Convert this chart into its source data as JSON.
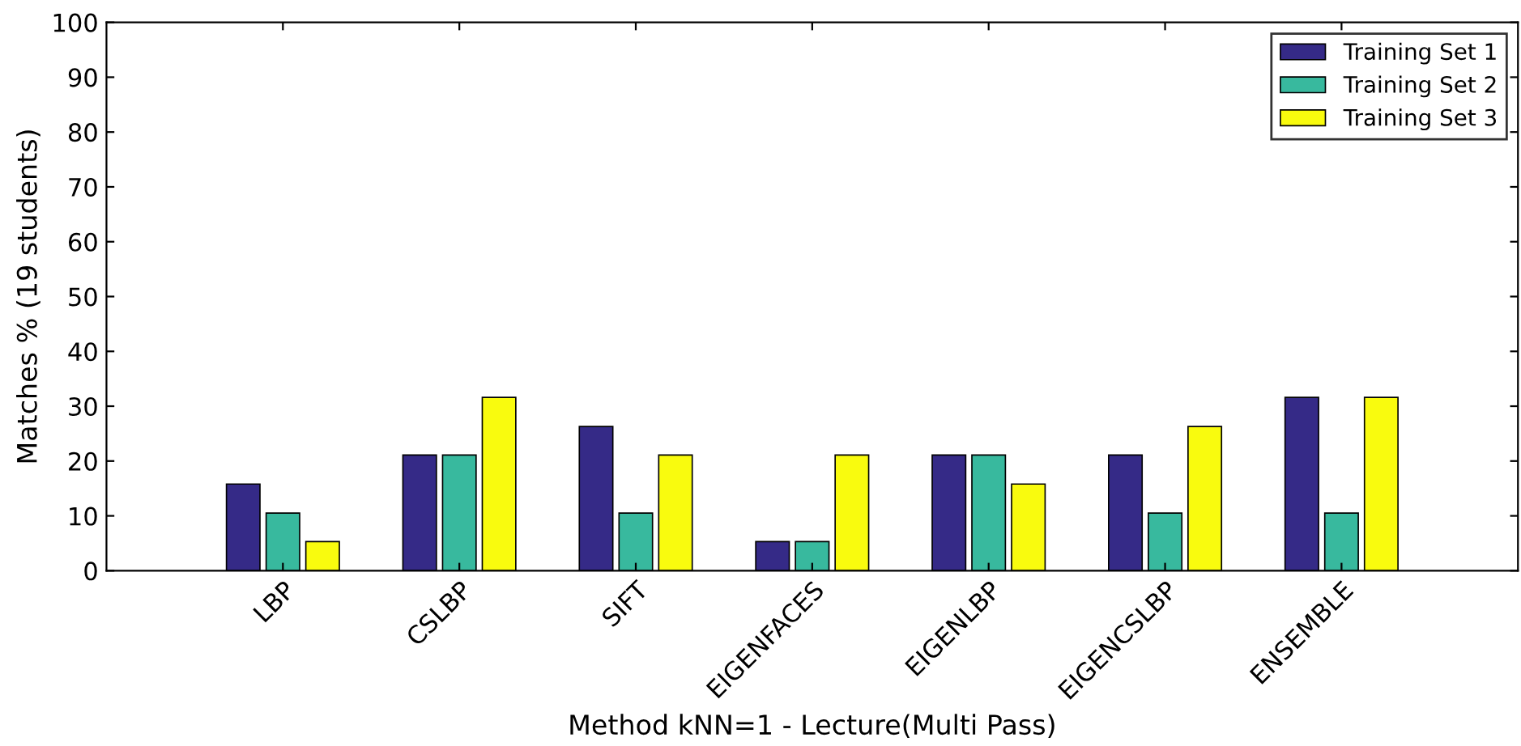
{
  "chart_data": {
    "type": "bar",
    "xlabel": "Method kNN=1 - Lecture(Multi Pass)",
    "ylabel": "Matches % (19 students)",
    "categories": [
      "LBP",
      "CSLBP",
      "SIFT",
      "EIGENFACES",
      "EIGENLBP",
      "EIGENCSLBP",
      "ENSEMBLE"
    ],
    "series": [
      {
        "name": "Training Set 1",
        "color": "#352a87",
        "values": [
          15.8,
          21.1,
          26.3,
          5.3,
          21.1,
          21.1,
          31.6
        ]
      },
      {
        "name": "Training Set 2",
        "color": "#38b99e",
        "values": [
          10.5,
          21.1,
          10.5,
          5.3,
          21.1,
          10.5,
          10.5
        ]
      },
      {
        "name": "Training Set 3",
        "color": "#f9fb0e",
        "values": [
          5.3,
          31.6,
          21.1,
          21.1,
          15.8,
          26.3,
          31.6
        ]
      }
    ],
    "ylim": [
      0,
      100
    ],
    "yticks": [
      0,
      10,
      20,
      30,
      40,
      50,
      60,
      70,
      80,
      90,
      100
    ],
    "grid": false,
    "legend": "top right"
  }
}
